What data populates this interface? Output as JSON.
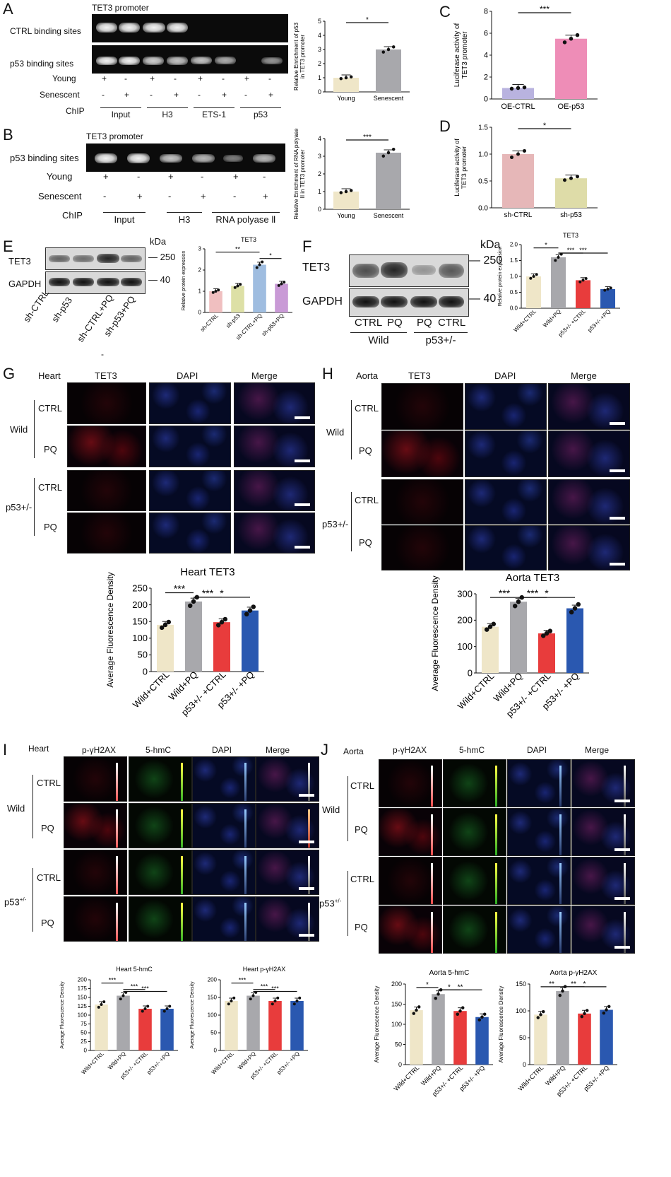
{
  "panels": {
    "A": {
      "label": "A",
      "gel_title": "TET3 promoter",
      "row1": "CTRL binding sites",
      "row2": "p53 binding sites",
      "young": "Young",
      "senescent": "Senescent",
      "chip": "ChIP",
      "young_signs": [
        "+",
        "-",
        "+",
        "-",
        "+",
        "-",
        "+",
        "-"
      ],
      "sen_signs": [
        "-",
        "+",
        "-",
        "+",
        "-",
        "+",
        "-",
        "+"
      ],
      "groups": [
        "Input",
        "H3",
        "ETS-1",
        "p53"
      ]
    },
    "B": {
      "label": "B",
      "gel_title": "TET3 promoter",
      "row1": "p53 binding sites",
      "young": "Young",
      "senescent": "Senescent",
      "chip": "ChIP",
      "young_signs": [
        "+",
        "-",
        "+",
        "-",
        "+",
        "-",
        "+",
        "-"
      ],
      "sen_signs": [
        "-",
        "+",
        "-",
        "+",
        "-",
        "+",
        "-",
        "+"
      ],
      "groups": [
        "Input",
        "H3",
        "RNA polyase Ⅱ"
      ]
    },
    "C": {
      "label": "C"
    },
    "D": {
      "label": "D"
    },
    "E": {
      "label": "E",
      "kda": "kDa",
      "row1": "TET3",
      "row2": "GAPDH",
      "mw1": "250",
      "mw2": "40",
      "lanes": [
        "sh-CTRL",
        "sh-p53",
        "sh-CTRL+PQ",
        "sh-p53+PQ"
      ],
      "dash": "-"
    },
    "F": {
      "label": "F",
      "kda": "kDa",
      "row1": "TET3",
      "row2": "GAPDH",
      "mw1": "250",
      "mw2": "40",
      "lanes": [
        "CTRL",
        "PQ",
        "PQ",
        "CTRL"
      ],
      "groups": [
        "Wild",
        "p53+/-"
      ]
    },
    "G": {
      "label": "G",
      "tissue": "Heart",
      "cols": [
        "TET3",
        "DAPI",
        "Merge"
      ],
      "rows": [
        "CTRL",
        "PQ",
        "CTRL",
        "PQ"
      ],
      "groups": [
        "Wild",
        "p53+/-"
      ]
    },
    "H": {
      "label": "H",
      "tissue": "Aorta",
      "cols": [
        "TET3",
        "DAPI",
        "Merge"
      ],
      "rows": [
        "CTRL",
        "PQ",
        "CTRL",
        "PQ"
      ],
      "groups": [
        "Wild",
        "p53+/-"
      ]
    },
    "I": {
      "label": "I",
      "tissue": "Heart",
      "cols": [
        "p-γH2AX",
        "5-hmC",
        "DAPI",
        "Merge"
      ],
      "rows": [
        "CTRL",
        "PQ",
        "CTRL",
        "PQ"
      ],
      "groups": [
        "Wild",
        "p53"
      ],
      "sup": "+/-"
    },
    "J": {
      "label": "J",
      "tissue": "Aorta",
      "cols": [
        "p-γH2AX",
        "5-hmC",
        "DAPI",
        "Merge"
      ],
      "rows": [
        "CTRL",
        "PQ",
        "CTRL",
        "PQ"
      ],
      "groups": [
        "Wild",
        "p53"
      ],
      "sup": "+/-"
    }
  },
  "chart_data": [
    {
      "id": "A",
      "type": "bar",
      "categories": [
        "Young",
        "Senescent"
      ],
      "values": [
        1.0,
        3.0
      ],
      "colors": [
        "#efe6c8",
        "#a8a8ac"
      ],
      "ylabel": "Relative Enrichment of p53 in TET3 promoter",
      "ylim": [
        0,
        5
      ],
      "yticks": [
        0,
        1,
        2,
        3,
        4,
        5
      ],
      "sig": [
        {
          "a": 0,
          "b": 1,
          "text": "*"
        }
      ]
    },
    {
      "id": "B",
      "type": "bar",
      "categories": [
        "Young",
        "Senescent"
      ],
      "values": [
        1.0,
        3.2
      ],
      "colors": [
        "#efe6c8",
        "#a8a8ac"
      ],
      "ylabel": "Relative Enrichment of RNA polyase II in TET3 promoter",
      "ylim": [
        0,
        4
      ],
      "yticks": [
        0,
        1,
        2,
        3,
        4
      ],
      "sig": [
        {
          "a": 0,
          "b": 1,
          "text": "***"
        }
      ]
    },
    {
      "id": "C",
      "type": "bar",
      "categories": [
        "OE-CTRL",
        "OE-p53"
      ],
      "values": [
        1.0,
        5.5
      ],
      "colors": [
        "#b9b3df",
        "#ee8db7"
      ],
      "ylabel": "Luciferase activity of TET3 promoter",
      "ylim": [
        0,
        8
      ],
      "yticks": [
        0,
        2,
        4,
        6,
        8
      ],
      "sig": [
        {
          "a": 0,
          "b": 1,
          "text": "***"
        }
      ]
    },
    {
      "id": "D",
      "type": "bar",
      "categories": [
        "sh-CTRL",
        "sh-p53"
      ],
      "values": [
        1.0,
        0.55
      ],
      "colors": [
        "#e6b7b8",
        "#dedca8"
      ],
      "ylabel": "Luciferase activity of TET3 promoter",
      "ylim": [
        0,
        1.5
      ],
      "yticks": [
        "0.0",
        "0.5",
        "1.0",
        "1.5"
      ],
      "sig": [
        {
          "a": 0,
          "b": 1,
          "text": "*"
        }
      ]
    },
    {
      "id": "E",
      "type": "bar",
      "title": "TET3",
      "categories": [
        "sh-CTRL",
        "sh-p53",
        "sh-CTRL+PQ",
        "sh-p53+PQ"
      ],
      "values": [
        1.0,
        1.25,
        2.25,
        1.35
      ],
      "colors": [
        "#f0bfc0",
        "#dde0a6",
        "#9fbde0",
        "#c99ad6"
      ],
      "ylabel": "Relative protein expression",
      "ylim": [
        0,
        3
      ],
      "yticks": [
        0,
        1,
        2,
        3
      ],
      "sig": [
        {
          "a": 0,
          "b": 2,
          "text": "**"
        },
        {
          "a": 2,
          "b": 3,
          "text": "*"
        }
      ]
    },
    {
      "id": "F",
      "type": "bar",
      "title": "TET3",
      "categories": [
        "Wild+CTRL",
        "Wild+PQ",
        "p53+/- +CTRL",
        "p53+/- +PQ"
      ],
      "values": [
        1.0,
        1.6,
        0.88,
        0.6
      ],
      "colors": [
        "#efe6c8",
        "#a8a8ac",
        "#e83c3c",
        "#2a58b0"
      ],
      "ylabel": "Relative protein expression",
      "ylim": [
        0,
        2
      ],
      "yticks": [
        "0.0",
        "0.5",
        "1.0",
        "1.5",
        "2.0"
      ],
      "sig": [
        {
          "a": 0,
          "b": 1,
          "text": "*"
        },
        {
          "a": 1,
          "b": 2,
          "text": "***"
        },
        {
          "a": 1,
          "b": 3,
          "text": "***"
        }
      ]
    },
    {
      "id": "G",
      "type": "bar",
      "title": "Heart  TET3",
      "categories": [
        "Wild+CTRL",
        "Wild+PQ",
        "p53+/- +CTRL",
        "p53+/- +PQ"
      ],
      "values": [
        140,
        210,
        148,
        183
      ],
      "colors": [
        "#efe6c8",
        "#a8a8ac",
        "#e83c3c",
        "#2a58b0"
      ],
      "ylabel": "Average Fluorescence Density",
      "ylim": [
        0,
        250
      ],
      "yticks": [
        0,
        50,
        100,
        150,
        200,
        250
      ],
      "sig": [
        {
          "a": 0,
          "b": 1,
          "text": "***"
        },
        {
          "a": 1,
          "b": 2,
          "text": "***"
        },
        {
          "a": 1,
          "b": 3,
          "text": "*"
        }
      ]
    },
    {
      "id": "H",
      "type": "bar",
      "title": "Aorta  TET3",
      "categories": [
        "Wild+CTRL",
        "Wild+PQ",
        "p53+/- +CTRL",
        "p53+/- +PQ"
      ],
      "values": [
        175,
        270,
        150,
        245
      ],
      "colors": [
        "#efe6c8",
        "#a8a8ac",
        "#e83c3c",
        "#2a58b0"
      ],
      "ylabel": "Average Fluorescence Density",
      "ylim": [
        0,
        300
      ],
      "yticks": [
        0,
        100,
        200,
        300
      ],
      "sig": [
        {
          "a": 0,
          "b": 1,
          "text": "***"
        },
        {
          "a": 1,
          "b": 2,
          "text": "***"
        },
        {
          "a": 1,
          "b": 3,
          "text": "*"
        }
      ]
    },
    {
      "id": "I1",
      "type": "bar",
      "title": "Heart    5-hmC",
      "categories": [
        "Wild+CTRL",
        "Wild+PQ",
        "p53+/- +CTRL",
        "p53+/- +PQ"
      ],
      "values": [
        130,
        155,
        118,
        118
      ],
      "colors": [
        "#efe6c8",
        "#a8a8ac",
        "#e83c3c",
        "#2a58b0"
      ],
      "ylabel": "Average Fluorescence Density",
      "ylim": [
        0,
        200
      ],
      "yticks": [
        0,
        25,
        50,
        75,
        100,
        125,
        150,
        175,
        200
      ],
      "sig": [
        {
          "a": 0,
          "b": 1,
          "text": "***"
        },
        {
          "a": 1,
          "b": 2,
          "text": "***"
        },
        {
          "a": 1,
          "b": 3,
          "text": "***"
        }
      ]
    },
    {
      "id": "I2",
      "type": "bar",
      "title": "Heart    p-γH2AX",
      "categories": [
        "Wild+CTRL",
        "Wild+PQ",
        "p53+/- +CTRL",
        "p53+/- +PQ"
      ],
      "values": [
        140,
        155,
        140,
        140
      ],
      "colors": [
        "#efe6c8",
        "#a8a8ac",
        "#e83c3c",
        "#2a58b0"
      ],
      "ylabel": "Average Fluorescence Density",
      "ylim": [
        0,
        200
      ],
      "yticks": [
        0,
        50,
        100,
        150,
        200
      ],
      "sig": [
        {
          "a": 0,
          "b": 1,
          "text": "***"
        },
        {
          "a": 1,
          "b": 2,
          "text": "***"
        },
        {
          "a": 1,
          "b": 3,
          "text": "***"
        }
      ]
    },
    {
      "id": "J1",
      "type": "bar",
      "title": "Aorta     5-hmC",
      "categories": [
        "Wild+CTRL",
        "Wild+PQ",
        "p53+/- +CTRL",
        "p53+/- +PQ"
      ],
      "values": [
        135,
        175,
        133,
        118
      ],
      "colors": [
        "#efe6c8",
        "#a8a8ac",
        "#e83c3c",
        "#2a58b0"
      ],
      "ylabel": "Average Fluorescence Density",
      "ylim": [
        0,
        200
      ],
      "yticks": [
        0,
        50,
        100,
        150,
        200
      ],
      "sig": [
        {
          "a": 0,
          "b": 1,
          "text": "*"
        },
        {
          "a": 1,
          "b": 2,
          "text": "*"
        },
        {
          "a": 1,
          "b": 3,
          "text": "**"
        }
      ]
    },
    {
      "id": "J2",
      "type": "bar",
      "title": "Aorta     p-γH2AX",
      "categories": [
        "Wild+CTRL",
        "Wild+PQ",
        "p53+/- +CTRL",
        "p53+/- +PQ"
      ],
      "values": [
        93,
        137,
        95,
        102
      ],
      "colors": [
        "#efe6c8",
        "#a8a8ac",
        "#e83c3c",
        "#2a58b0"
      ],
      "ylabel": "Average Fluorescence Density",
      "ylim": [
        0,
        150
      ],
      "yticks": [
        0,
        50,
        100,
        150
      ],
      "sig": [
        {
          "a": 0,
          "b": 1,
          "text": "**"
        },
        {
          "a": 1,
          "b": 2,
          "text": "**"
        },
        {
          "a": 1,
          "b": 3,
          "text": "*"
        }
      ]
    }
  ]
}
